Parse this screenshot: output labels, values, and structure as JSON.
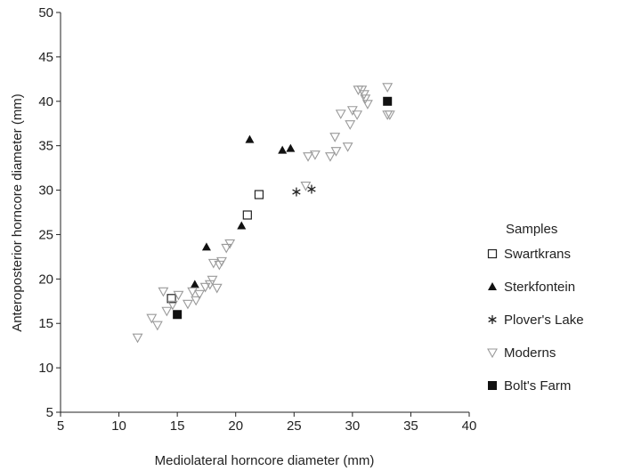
{
  "chart_data": {
    "type": "scatter",
    "title": "",
    "xlabel": "Mediolateral horncore diameter (mm)",
    "ylabel": "Anteroposterior horncore diameter (mm)",
    "xlim": [
      5,
      40
    ],
    "ylim": [
      5,
      50
    ],
    "xticks": [
      5,
      10,
      15,
      20,
      25,
      30,
      35,
      40
    ],
    "yticks": [
      5,
      10,
      15,
      20,
      25,
      30,
      35,
      40,
      45,
      50
    ],
    "grid": false,
    "legend_title": "Samples",
    "legend_position": "right",
    "series": [
      {
        "name": "Swartkrans",
        "marker": "square-open",
        "points": [
          [
            14.5,
            17.8
          ],
          [
            21.0,
            27.2
          ],
          [
            22.0,
            29.5
          ]
        ]
      },
      {
        "name": "Sterkfontein",
        "marker": "triangle-filled",
        "points": [
          [
            16.5,
            19.4
          ],
          [
            17.5,
            23.6
          ],
          [
            20.5,
            26.0
          ],
          [
            21.2,
            35.7
          ],
          [
            24.0,
            34.5
          ],
          [
            24.7,
            34.7
          ]
        ]
      },
      {
        "name": "Plover's Lake",
        "marker": "asterisk",
        "points": [
          [
            25.2,
            29.8
          ],
          [
            26.5,
            30.1
          ]
        ]
      },
      {
        "name": "Moderns",
        "marker": "triangle-down-open",
        "points": [
          [
            11.6,
            13.4
          ],
          [
            12.8,
            15.6
          ],
          [
            13.3,
            14.8
          ],
          [
            13.8,
            18.6
          ],
          [
            14.1,
            16.4
          ],
          [
            14.6,
            17.1
          ],
          [
            15.1,
            18.2
          ],
          [
            15.9,
            17.2
          ],
          [
            16.3,
            18.6
          ],
          [
            16.6,
            17.6
          ],
          [
            16.9,
            18.3
          ],
          [
            17.4,
            19.1
          ],
          [
            17.8,
            19.4
          ],
          [
            18.0,
            19.9
          ],
          [
            18.1,
            21.8
          ],
          [
            18.4,
            19.0
          ],
          [
            18.6,
            21.6
          ],
          [
            18.8,
            22.0
          ],
          [
            19.2,
            23.5
          ],
          [
            19.5,
            24.0
          ],
          [
            26.0,
            30.5
          ],
          [
            26.2,
            33.8
          ],
          [
            26.8,
            34.0
          ],
          [
            28.1,
            33.8
          ],
          [
            28.6,
            34.4
          ],
          [
            28.5,
            36.0
          ],
          [
            29.0,
            38.6
          ],
          [
            29.6,
            34.9
          ],
          [
            29.8,
            37.4
          ],
          [
            30.0,
            39.0
          ],
          [
            30.4,
            38.5
          ],
          [
            30.5,
            41.3
          ],
          [
            30.8,
            41.3
          ],
          [
            31.0,
            40.8
          ],
          [
            31.1,
            40.3
          ],
          [
            31.3,
            39.7
          ],
          [
            33.0,
            41.6
          ],
          [
            33.0,
            38.5
          ],
          [
            33.2,
            38.5
          ]
        ]
      },
      {
        "name": "Bolt's Farm",
        "marker": "square-filled",
        "points": [
          [
            15.0,
            16.0
          ],
          [
            33.0,
            40.0
          ]
        ]
      }
    ]
  }
}
